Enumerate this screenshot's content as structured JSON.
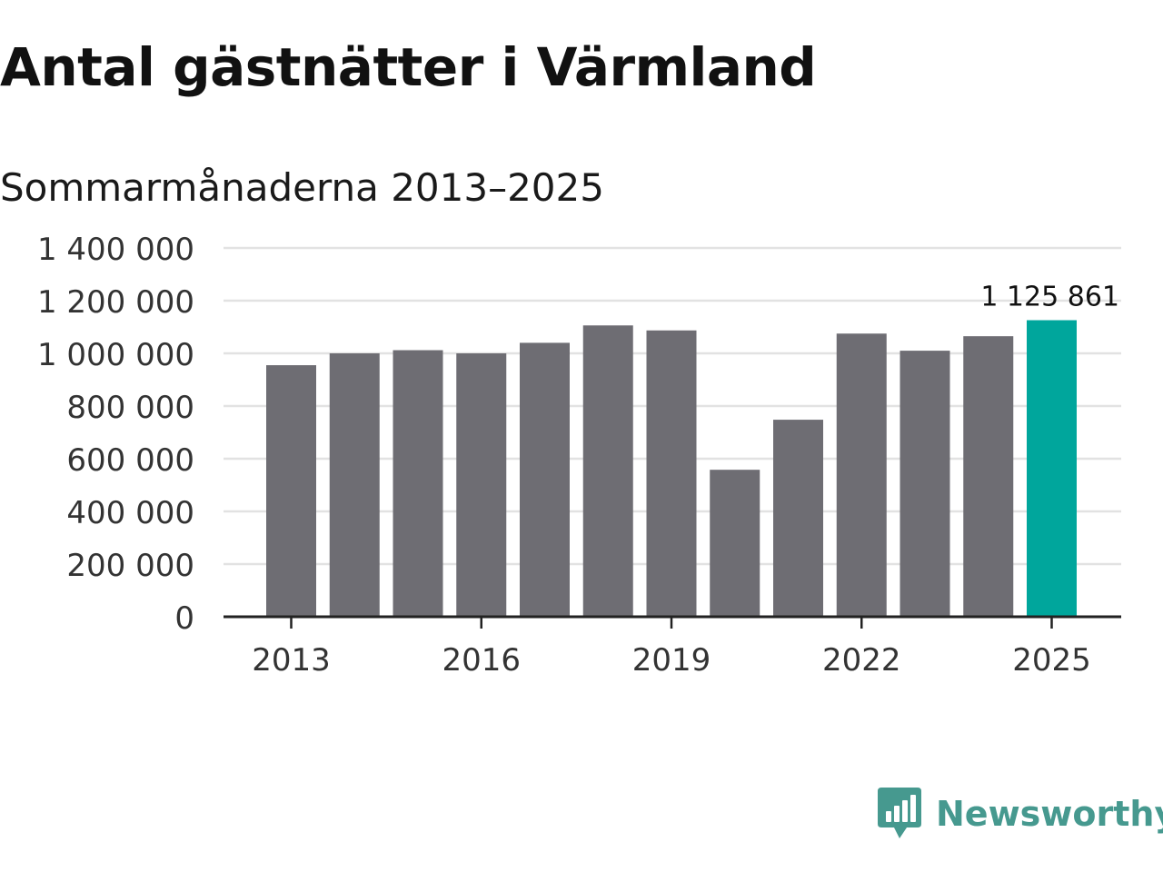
{
  "header": {
    "title": "Antal gästnätter i Värmland",
    "subtitle": "Sommarmånaderna 2013–2025"
  },
  "brand": {
    "name": "Newsworthy",
    "logo_icon": "newsworthy-chart-bubble-icon",
    "color": "#46998f"
  },
  "colors": {
    "bar": "#6e6d73",
    "highlight": "#00a69c",
    "grid": "#e2e2e2",
    "axis": "#222222"
  },
  "chart_data": {
    "type": "bar",
    "title": "Antal gästnätter i Värmland",
    "subtitle": "Sommarmånaderna 2013–2025",
    "xlabel": "",
    "ylabel": "",
    "categories": [
      "2013",
      "2014",
      "2015",
      "2016",
      "2017",
      "2018",
      "2019",
      "2020",
      "2021",
      "2022",
      "2023",
      "2024",
      "2025"
    ],
    "values": [
      955000,
      1000000,
      1012000,
      1000000,
      1040000,
      1106000,
      1087000,
      558000,
      748000,
      1075000,
      1010000,
      1065000,
      1125861
    ],
    "ylim": [
      0,
      1400000
    ],
    "yticks": [
      0,
      200000,
      400000,
      600000,
      800000,
      1000000,
      1200000,
      1400000
    ],
    "ytick_labels": [
      "0",
      "200 000",
      "400 000",
      "600 000",
      "800 000",
      "1 000 000",
      "1 200 000",
      "1 400 000"
    ],
    "xtick_labels": [
      "2013",
      "2016",
      "2019",
      "2022",
      "2025"
    ],
    "highlight_category": "2025",
    "data_label": "1 125 861",
    "grid": true,
    "legend": "none"
  }
}
